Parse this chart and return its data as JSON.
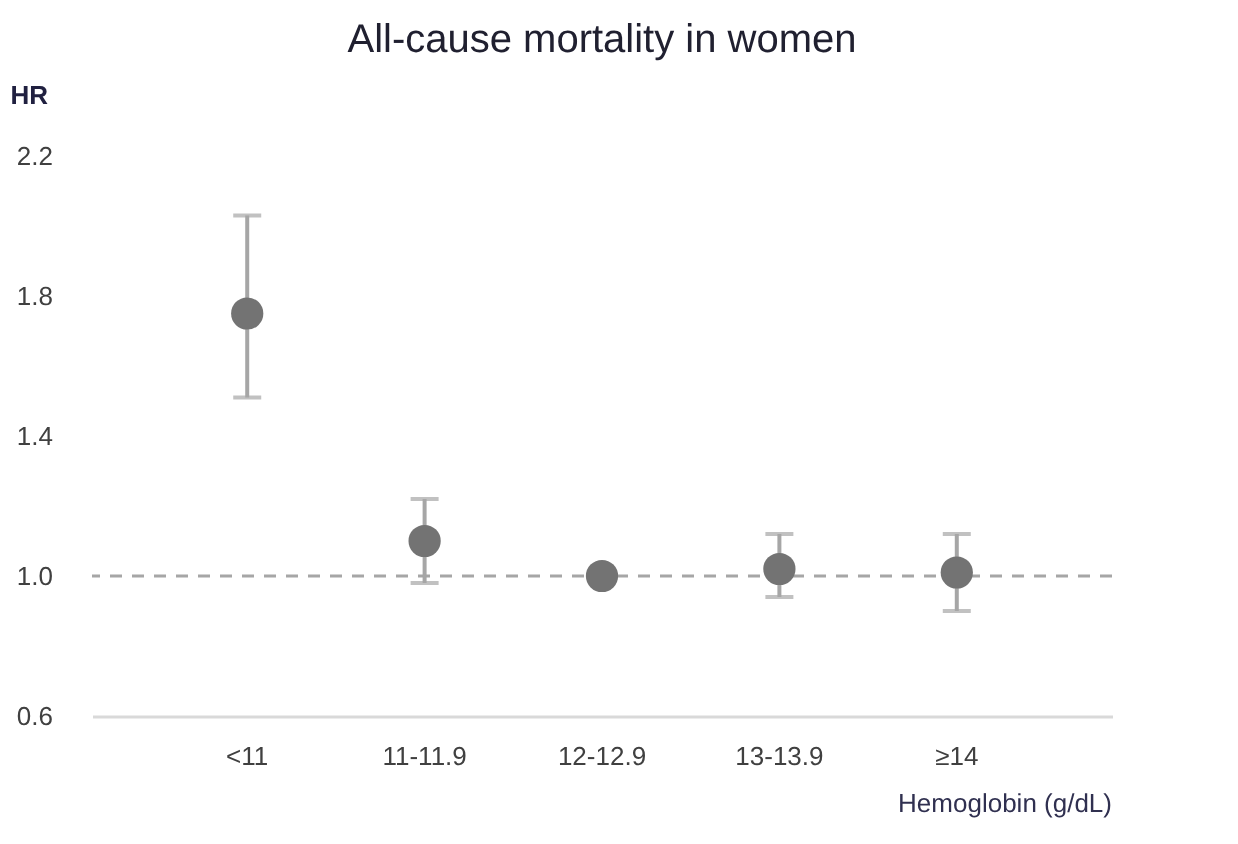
{
  "chart_data": {
    "type": "scatter",
    "title": "All-cause mortality in women",
    "xlabel": "Hemoglobin (g/dL)",
    "ylabel": "HR",
    "categories": [
      "<11",
      "11-11.9",
      "12-12.9",
      "13-13.9",
      "≥14"
    ],
    "series": [
      {
        "color": "#737373",
        "values": [
          1.75,
          1.1,
          1.0,
          1.02,
          1.01
        ],
        "errors": [
          [
            1.51,
            2.03
          ],
          [
            0.98,
            1.22
          ],
          null,
          [
            0.94,
            1.12
          ],
          [
            0.9,
            1.12
          ]
        ]
      }
    ],
    "ylim": [
      0.6,
      2.2
    ],
    "yticks": [
      {
        "value": 0.6,
        "label": "0.6"
      },
      {
        "value": 1.0,
        "label": "1.0"
      },
      1.4,
      1.8,
      2.2
    ],
    "ref_lines": [
      {
        "axis": "y",
        "value": 1.0,
        "color": "#a6a6a6",
        "line_style": "dashed"
      }
    ],
    "marker": "circle",
    "grid": false
  }
}
